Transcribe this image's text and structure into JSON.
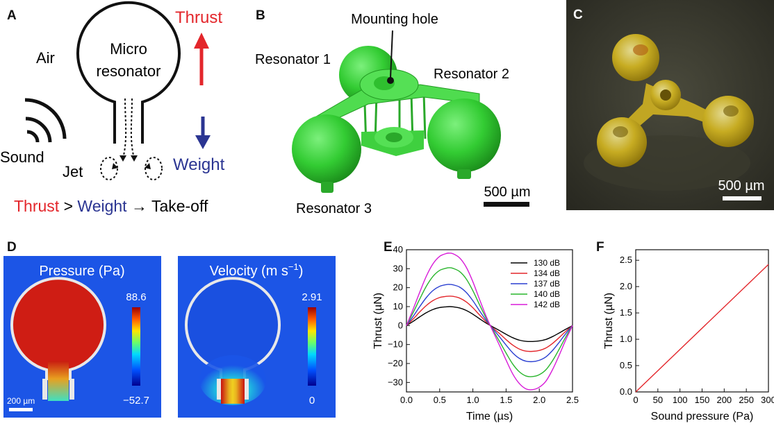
{
  "panels": {
    "A": {
      "label": "A",
      "air": "Air",
      "micro": "Micro",
      "resonator": "resonator",
      "thrust_top": "Thrust",
      "sound": "Sound",
      "jet": "Jet",
      "weight": "Weight",
      "eq_thrust": "Thrust",
      "eq_gt": " > ",
      "eq_weight": "Weight",
      "eq_arrow": " → Take-off",
      "colors": {
        "thrust": "#e3262b",
        "weight": "#2b3592"
      }
    },
    "B": {
      "label": "B",
      "mounting_hole": "Mounting hole",
      "resonator1": "Resonator 1",
      "resonator2": "Resonator 2",
      "resonator3": "Resonator 3",
      "scale": "500 µm"
    },
    "C": {
      "label": "C",
      "scale": "500 µm"
    },
    "D": {
      "label": "D",
      "pressure_title": "Pressure (Pa)",
      "pressure_max": "88.6",
      "pressure_min": "−52.7",
      "velocity_title": "Velocity (m s",
      "velocity_sup": "−1",
      "velocity_close": ")",
      "velocity_max": "2.91",
      "velocity_min": "0",
      "scale": "200 µm"
    },
    "E": {
      "label": "E"
    },
    "F": {
      "label": "F"
    }
  },
  "chart_data": [
    {
      "panel": "E",
      "type": "line",
      "xlabel": "Time (µs)",
      "ylabel": "Thrust (µN)",
      "xlim": [
        0,
        2.5
      ],
      "ylim": [
        -35,
        40
      ],
      "xticks": [
        "0.0",
        "0.5",
        "1.0",
        "1.5",
        "2.0",
        "2.5"
      ],
      "yticks": [
        "−30",
        "−20",
        "−10",
        "0",
        "10",
        "20",
        "30",
        "40"
      ],
      "legend_position": "top-right",
      "x": [
        0,
        0.1,
        0.2,
        0.3,
        0.4,
        0.5,
        0.6,
        0.65,
        0.7,
        0.8,
        0.9,
        1.0,
        1.1,
        1.2,
        1.3,
        1.4,
        1.5,
        1.6,
        1.7,
        1.8,
        1.9,
        2.0,
        2.1,
        2.2,
        2.3,
        2.4,
        2.5
      ],
      "series": [
        {
          "name": "130 dB",
          "color": "#000000",
          "values": [
            0,
            2.2,
            4.6,
            6.8,
            8.5,
            9.5,
            9.9,
            10,
            9.9,
            9.3,
            8,
            6,
            3.6,
            1.3,
            -0.7,
            -2.6,
            -4.6,
            -6.4,
            -7.7,
            -8.3,
            -8.4,
            -8.1,
            -7.3,
            -5.8,
            -3.9,
            -1.9,
            0
          ]
        },
        {
          "name": "134 dB",
          "color": "#e3262b",
          "values": [
            0,
            3.4,
            7.2,
            10.6,
            13.2,
            14.8,
            15.4,
            15.5,
            15.4,
            14.5,
            12.5,
            9.4,
            5.6,
            2,
            -1.2,
            -4.2,
            -7.4,
            -10.3,
            -12.4,
            -13.5,
            -13.6,
            -13.1,
            -11.8,
            -9.4,
            -6.3,
            -3,
            0
          ]
        },
        {
          "name": "137 dB",
          "color": "#2a3fd1",
          "values": [
            0,
            4.8,
            10,
            14.8,
            18.5,
            20.7,
            21.6,
            21.7,
            21.5,
            20.3,
            17.5,
            13.1,
            7.8,
            2.8,
            -1.6,
            -5.9,
            -10.3,
            -14.4,
            -17.3,
            -18.8,
            -19,
            -18.3,
            -16.5,
            -13.1,
            -8.8,
            -4.2,
            0
          ]
        },
        {
          "name": "140 dB",
          "color": "#29b52c",
          "values": [
            0,
            6.8,
            14,
            20.8,
            26,
            29.1,
            30.3,
            30.5,
            30.2,
            28.5,
            24.6,
            18.4,
            11,
            3.9,
            -2.3,
            -8.3,
            -14.5,
            -20.3,
            -24.4,
            -26.6,
            -26.9,
            -25.9,
            -23.3,
            -18.5,
            -12.4,
            -5.9,
            0
          ]
        },
        {
          "name": "142 dB",
          "color": "#d81bd8",
          "values": [
            0,
            8.6,
            17.6,
            26.1,
            32.6,
            36.5,
            38,
            38.2,
            37.9,
            35.7,
            30.8,
            23.1,
            13.8,
            4.9,
            -2.9,
            -10.4,
            -18.2,
            -25.5,
            -30.6,
            -33.4,
            -33.8,
            -32.5,
            -29.3,
            -23.2,
            -15.6,
            -7.4,
            0
          ]
        }
      ]
    },
    {
      "panel": "F",
      "type": "line",
      "xlabel": "Sound pressure (Pa)",
      "ylabel": "Thrust (µN)",
      "xlim": [
        0,
        300
      ],
      "ylim": [
        0,
        2.7
      ],
      "xticks": [
        "0",
        "50",
        "100",
        "150",
        "200",
        "250",
        "300"
      ],
      "yticks": [
        "0.0",
        "0.5",
        "1.0",
        "1.5",
        "2.0",
        "2.5"
      ],
      "series": [
        {
          "color": "#e3262b",
          "x": [
            0,
            300
          ],
          "values": [
            0,
            2.42
          ]
        }
      ]
    }
  ]
}
